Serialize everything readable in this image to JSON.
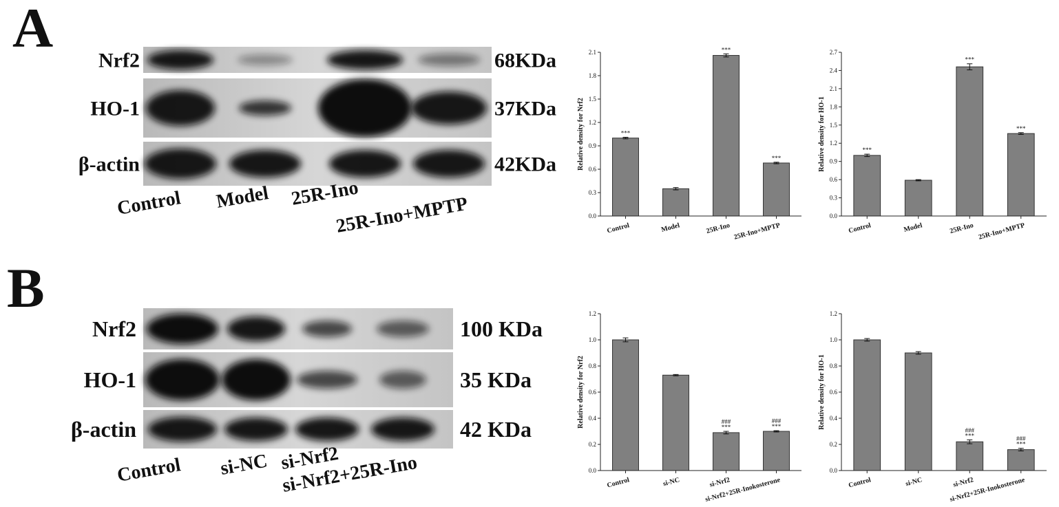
{
  "panel_labels": [
    "A",
    "B"
  ],
  "blots": [
    {
      "rows": [
        {
          "label": "Nrf2",
          "size": "68KDa"
        },
        {
          "label": "HO-1",
          "size": "37KDa"
        },
        {
          "label": "β-actin",
          "size": "42KDa"
        }
      ],
      "lanes": [
        "Control",
        "Model",
        "25R-Ino",
        "25R-Ino+MPTP"
      ]
    },
    {
      "rows": [
        {
          "label": "Nrf2",
          "size": "100 KDa"
        },
        {
          "label": "HO-1",
          "size": "35 KDa"
        },
        {
          "label": "β-actin",
          "size": "42 KDa"
        }
      ],
      "lanes": [
        "Control",
        "si-NC",
        "si-Nrf2",
        "si-Nrf2+25R-Ino"
      ]
    }
  ],
  "chart_data": [
    {
      "type": "bar",
      "ylabel": "Relative density for Nrf2",
      "color": "#808080",
      "categories": [
        "Control",
        "Model",
        "25R-Ino",
        "25R-Ino+MPTP"
      ],
      "values": [
        1.0,
        0.35,
        2.06,
        0.68
      ],
      "errors": [
        0.01,
        0.015,
        0.02,
        0.01
      ],
      "annotations": [
        [
          "***"
        ],
        [],
        [
          "***"
        ],
        [
          "***"
        ]
      ],
      "ylim": [
        0,
        2.1
      ],
      "yticks": [
        {
          "value": 0,
          "label": "0.0"
        },
        0.3,
        0.6,
        0.9,
        1.2,
        1.5,
        1.8,
        2.1
      ]
    },
    {
      "type": "bar",
      "ylabel": "Relative density for HO-1",
      "color": "#808080",
      "categories": [
        "Control",
        "Model",
        "25R-Ino",
        "25R-Ino+MPTP"
      ],
      "values": [
        1.0,
        0.59,
        2.46,
        1.36
      ],
      "errors": [
        0.02,
        0.01,
        0.05,
        0.015
      ],
      "annotations": [
        [
          "***"
        ],
        [],
        [
          "***"
        ],
        [
          "***"
        ]
      ],
      "ylim": [
        0,
        2.7
      ],
      "yticks": [
        {
          "value": 0,
          "label": "0.0"
        },
        0.3,
        0.6,
        0.9,
        1.2,
        1.5,
        1.8,
        2.1,
        2.4,
        2.7
      ]
    },
    {
      "type": "bar",
      "ylabel": "Relative density for Nrf2",
      "color": "#808080",
      "categories": [
        "Control",
        "si-NC",
        "si-Nrf2",
        "si-Nrf2+25R-Inokosterone"
      ],
      "values": [
        1.0,
        0.73,
        0.29,
        0.3
      ],
      "errors": [
        0.015,
        0.005,
        0.01,
        0.005
      ],
      "annotations": [
        [],
        [],
        [
          "###",
          "***"
        ],
        [
          "###",
          "***"
        ]
      ],
      "ylim": [
        0,
        1.2
      ],
      "yticks": [
        {
          "value": 0,
          "label": "0.0"
        },
        0.2,
        0.4,
        0.6,
        0.8,
        {
          "value": 1,
          "label": "1.0"
        },
        1.2
      ]
    },
    {
      "type": "bar",
      "ylabel": "Relative density for HO-1",
      "color": "#808080",
      "categories": [
        "Control",
        "si-NC",
        "si-Nrf2",
        "si-Nrf2+25R-Inokosterone"
      ],
      "values": [
        1.0,
        0.9,
        0.22,
        0.16
      ],
      "errors": [
        0.01,
        0.01,
        0.015,
        0.01
      ],
      "annotations": [
        [],
        [],
        [
          "###",
          "***"
        ],
        [
          "###",
          "***"
        ]
      ],
      "ylim": [
        0,
        1.2
      ],
      "yticks": [
        {
          "value": 0,
          "label": "0.0"
        },
        0.2,
        0.4,
        0.6,
        0.8,
        {
          "value": 1,
          "label": "1.0"
        },
        1.2
      ]
    }
  ]
}
